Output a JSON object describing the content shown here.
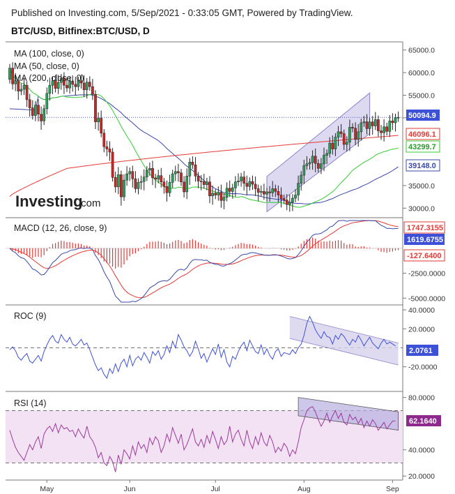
{
  "header": {
    "published": "Published on Investing.com, 5/Sep/2021 - 0:33:05 GMT, Powered by TradingView.",
    "symbol": "BTC/USD, Bitfinex:BTC/USD, D"
  },
  "watermark": {
    "brand": "Investing",
    "suffix": ".com"
  },
  "chart_data": [
    {
      "type": "candlestick",
      "name": "price",
      "legend": [
        "MA (100, close, 0)",
        "MA (50, close, 0)",
        "MA (200, close, 0)"
      ],
      "x_ticks": [
        "May",
        "Jun",
        "Jul",
        "Aug",
        "Sep"
      ],
      "y_ticks": [
        "65000.0",
        "60000.0",
        "55000.0",
        "50000.0",
        "35000.0",
        "30000.0"
      ],
      "ylim": [
        28500,
        66500
      ],
      "last_price": 50094.9,
      "last_price_label": "50094.9",
      "ma_labels": [
        {
          "series": "MA (200, close, 0)",
          "value": 46096.1,
          "label": "46096.1",
          "color": "#e53935"
        },
        {
          "series": "MA (50, close, 0)",
          "value": 43299.7,
          "label": "43299.7",
          "color": "#33cc33"
        },
        {
          "series": "MA (100, close, 0)",
          "value": 39148.0,
          "label": "39148.0",
          "color": "#3949ab"
        }
      ],
      "closes": [
        61000,
        57500,
        58200,
        55900,
        56300,
        57200,
        54000,
        52200,
        50500,
        52800,
        50800,
        49300,
        52000,
        55400,
        57200,
        58200,
        56500,
        57800,
        58800,
        57200,
        56600,
        58100,
        57400,
        56900,
        58200,
        57700,
        56200,
        57900,
        56900,
        55200,
        49100,
        49900,
        46600,
        43600,
        43100,
        42400,
        36800,
        34700,
        37400,
        32500,
        36200,
        37600,
        38100,
        36500,
        34300,
        35700,
        35900,
        36900,
        38400,
        38800,
        36700,
        36400,
        37200,
        35800,
        34800,
        33400,
        35700,
        37600,
        38100,
        37800,
        35800,
        33600,
        37100,
        40200,
        39600,
        37100,
        36000,
        35900,
        35200,
        35800,
        32700,
        33300,
        32900,
        33500,
        31700,
        32400,
        34400,
        33700,
        34500,
        35800,
        36000,
        36900,
        35500,
        34800,
        35900,
        35300,
        34300,
        33500,
        33700,
        33100,
        33600,
        33400,
        34300,
        33700,
        32900,
        32100,
        31800,
        30800,
        31300,
        32200,
        32900,
        35500,
        37300,
        39400,
        39800,
        40100,
        41500,
        39900,
        38800,
        39800,
        41700,
        42100,
        44400,
        43100,
        45700,
        46900,
        46500,
        44100,
        44600,
        47900,
        47700,
        45200,
        46900,
        48900,
        49100,
        47600,
        49100,
        48200,
        49600,
        47100,
        46700,
        48000,
        47000,
        49300,
        48900,
        50000,
        50100
      ]
    },
    {
      "type": "line",
      "name": "MACD",
      "title": "MACD (12, 26, close, 9)",
      "y_ticks": [
        "-2500.0000",
        "-5000.0000"
      ],
      "ylim": [
        -5400,
        2800
      ],
      "labels": [
        {
          "value": 1747.3155,
          "label": "1747.3155",
          "color": "#e53935"
        },
        {
          "value": 1619.6755,
          "label": "1619.6755",
          "color": "#3949ab"
        },
        {
          "value": -127.64,
          "label": "-127.6400",
          "color": "#e53935"
        }
      ]
    },
    {
      "type": "line",
      "name": "ROC",
      "title": "ROC (9)",
      "y_ticks": [
        "40.0000",
        "20.0000",
        "-20.0000"
      ],
      "ylim": [
        -43,
        43
      ],
      "zero_line": 0,
      "last_value": 2.0761,
      "last_label": "2.0761",
      "values": [
        -2,
        1,
        -3,
        -10,
        -13,
        -9,
        -6,
        -14,
        -16,
        -12,
        -8,
        -14,
        -4,
        3,
        9,
        13,
        7,
        5,
        14,
        9,
        6,
        11,
        4,
        2,
        5,
        9,
        3,
        5,
        -2,
        -10,
        -18,
        -24,
        -21,
        -28,
        -32,
        -22,
        -27,
        -17,
        -25,
        -16,
        -12,
        -20,
        -8,
        -19,
        -12,
        -9,
        -13,
        -5,
        -10,
        -16,
        -4,
        -8,
        -3,
        -12,
        -7,
        2,
        -5,
        7,
        0,
        14,
        8,
        1,
        -3,
        -9,
        -4,
        7,
        -1,
        -11,
        -6,
        -15,
        -8,
        -1,
        -7,
        4,
        -10,
        -2,
        -15,
        -20,
        -9,
        -12,
        -4,
        2,
        6,
        -3,
        8,
        2,
        -4,
        -6,
        3,
        -7,
        -1,
        -8,
        -12,
        -4,
        -1,
        -9,
        -5,
        -6,
        -7,
        -2,
        -6,
        0,
        4,
        13,
        26,
        33,
        27,
        19,
        14,
        10,
        17,
        12,
        11,
        4,
        13,
        9,
        15,
        12,
        7,
        3,
        9,
        6,
        13,
        8,
        2,
        7,
        11,
        5,
        2,
        -1,
        5,
        9,
        4,
        6,
        4,
        2
      ]
    },
    {
      "type": "line",
      "name": "RSI",
      "title": "RSI (14)",
      "y_ticks": [
        "80.0000",
        "40.0000",
        "20.0000"
      ],
      "ylim": [
        18,
        83
      ],
      "band": [
        30,
        70
      ],
      "last_value": 62.164,
      "last_label": "62.1640",
      "values": [
        55,
        48,
        42,
        38,
        35,
        32,
        38,
        44,
        40,
        46,
        50,
        41,
        52,
        56,
        58,
        54,
        60,
        53,
        59,
        56,
        57,
        54,
        55,
        50,
        56,
        52,
        49,
        58,
        50,
        47,
        42,
        34,
        38,
        30,
        28,
        35,
        31,
        23,
        36,
        29,
        40,
        37,
        33,
        43,
        36,
        46,
        41,
        44,
        38,
        49,
        44,
        50,
        47,
        38,
        43,
        52,
        46,
        57,
        51,
        45,
        52,
        40,
        44,
        50,
        56,
        46,
        43,
        48,
        42,
        51,
        45,
        54,
        48,
        41,
        50,
        44,
        47,
        58,
        46,
        52,
        55,
        48,
        43,
        55,
        46,
        41,
        50,
        44,
        53,
        46,
        43,
        51,
        46,
        38,
        42,
        39,
        45,
        42,
        35,
        40,
        37,
        46,
        57,
        63,
        70,
        72,
        73,
        69,
        63,
        58,
        62,
        68,
        61,
        66,
        70,
        64,
        68,
        61,
        59,
        67,
        63,
        65,
        60,
        64,
        57,
        62,
        58,
        63,
        60,
        55,
        58,
        61,
        56,
        59,
        62,
        62
      ]
    }
  ]
}
